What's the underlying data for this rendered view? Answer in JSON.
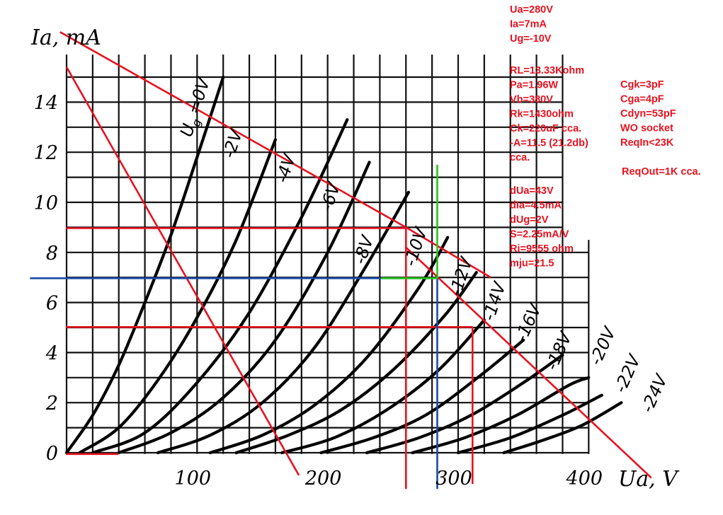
{
  "chart_data": {
    "type": "line",
    "xlabel": "Ua, V",
    "ylabel": "Ia, mA",
    "xlim": [
      0,
      400
    ],
    "ylim": [
      0,
      15
    ],
    "x_ticks": [
      100,
      200,
      300,
      400
    ],
    "x_tick_labels": [
      "100",
      "200",
      "300",
      "400"
    ],
    "y_ticks": [
      0,
      2,
      4,
      6,
      8,
      10,
      12,
      14
    ],
    "y_tick_labels": [
      "0",
      "2",
      "4",
      "6",
      "8",
      "10",
      "12",
      "14"
    ],
    "grid": true,
    "series": [
      {
        "name": "Ug=0V",
        "label": "=0V",
        "ug": 0,
        "x": [
          0,
          20,
          40,
          60,
          80,
          100,
          120
        ],
        "y": [
          0,
          1.5,
          3.5,
          6.0,
          8.7,
          11.8,
          15.0
        ]
      },
      {
        "name": "-2V",
        "label": "-2V",
        "ug": -2,
        "x": [
          10,
          40,
          70,
          100,
          130,
          160
        ],
        "y": [
          0,
          1.0,
          2.9,
          5.4,
          8.5,
          12.5
        ]
      },
      {
        "name": "-4V",
        "label": "-4V",
        "ug": -4,
        "x": [
          20,
          60,
          100,
          140,
          180,
          215
        ],
        "y": [
          0,
          0.8,
          2.8,
          5.6,
          9.4,
          13.3
        ]
      },
      {
        "name": "-6V",
        "label": "-6V",
        "ug": -6,
        "x": [
          40,
          80,
          120,
          160,
          200,
          232
        ],
        "y": [
          0,
          0.8,
          2.2,
          4.5,
          8.0,
          11.6
        ]
      },
      {
        "name": "-8V",
        "label": "-8V",
        "ug": -8,
        "x": [
          70,
          110,
          150,
          190,
          230,
          262
        ],
        "y": [
          0,
          0.7,
          2.0,
          4.2,
          7.5,
          10.4
        ]
      },
      {
        "name": "-10V",
        "label": "-10V",
        "ug": -10,
        "x": [
          110,
          150,
          190,
          230,
          270,
          292
        ],
        "y": [
          0,
          0.7,
          1.9,
          3.8,
          6.6,
          8.6
        ]
      },
      {
        "name": "-12V",
        "label": "-12V",
        "ug": -12,
        "x": [
          130,
          170,
          210,
          250,
          290,
          314
        ],
        "y": [
          0,
          0.7,
          1.7,
          3.3,
          5.5,
          7.2
        ]
      },
      {
        "name": "-14V",
        "label": "-14V",
        "ug": -14,
        "x": [
          165,
          205,
          245,
          285,
          320
        ],
        "y": [
          0,
          0.6,
          1.7,
          3.3,
          5.3
        ]
      },
      {
        "name": "-16V",
        "label": "-16V",
        "ug": -16,
        "x": [
          195,
          235,
          275,
          315,
          350
        ],
        "y": [
          0,
          0.6,
          1.5,
          3.0,
          4.5
        ]
      },
      {
        "name": "-18V",
        "label": "-18V",
        "ug": -18,
        "x": [
          230,
          270,
          310,
          350,
          380
        ],
        "y": [
          0,
          0.6,
          1.5,
          2.8,
          3.9
        ]
      },
      {
        "name": "-20V",
        "label": "-20V",
        "ug": -20,
        "x": [
          265,
          305,
          345,
          385,
          400
        ],
        "y": [
          0,
          0.6,
          1.5,
          2.7,
          3.0
        ]
      },
      {
        "name": "-22V",
        "label": "-22V",
        "ug": -22,
        "x": [
          300,
          340,
          380,
          410
        ],
        "y": [
          0,
          0.6,
          1.5,
          2.3
        ]
      },
      {
        "name": "-24V",
        "label": "-24V",
        "ug": -24,
        "x": [
          335,
          365,
          395,
          425
        ],
        "y": [
          0,
          0.5,
          1.1,
          2.0
        ]
      }
    ],
    "overlay_lines": [
      {
        "color": "#e8121f",
        "x": [
          -5,
          260,
          325
        ],
        "y": [
          16.8,
          9.0,
          7.0
        ]
      },
      {
        "color": "#e8121f",
        "x": [
          0,
          178
        ],
        "y": [
          15.4,
          -0.9
        ]
      },
      {
        "color": "#e8121f",
        "x": [
          260,
          448
        ],
        "y": [
          8.2,
          -1.0
        ]
      },
      {
        "color": "#e8121f",
        "x": [
          -0.5,
          260
        ],
        "y": [
          8.97,
          8.97
        ]
      },
      {
        "color": "#e8121f",
        "x": [
          -0.5,
          311
        ],
        "y": [
          5.02,
          5.02
        ]
      },
      {
        "color": "#e8121f",
        "x": [
          260,
          260
        ],
        "y": [
          8.97,
          -1.45
        ]
      },
      {
        "color": "#e8121f",
        "x": [
          311,
          311
        ],
        "y": [
          5.02,
          -1.25
        ]
      },
      {
        "color": "#e8121f",
        "x": [
          -0.5,
          39.5
        ],
        "y": [
          -0.05,
          -0.05
        ]
      },
      {
        "color": "#1a4aa8",
        "x": [
          -28,
          284
        ],
        "y": [
          6.97,
          6.97
        ]
      },
      {
        "color": "#1a4aa8",
        "x": [
          284,
          284
        ],
        "y": [
          6.97,
          -1.45
        ]
      },
      {
        "color": "#22c51a",
        "x": [
          241,
          284
        ],
        "y": [
          6.97,
          6.97
        ]
      },
      {
        "color": "#22c51a",
        "x": [
          284,
          284
        ],
        "y": [
          6.97,
          11.5
        ]
      }
    ]
  },
  "annotations": {
    "op_point": [
      "Ua=280V",
      "Ia=7mA",
      "Ug=-10V"
    ],
    "stage": [
      "RL=13.33Kohm",
      "Pa=1.96W",
      "Vb=380V",
      "Rk=1430ohm",
      "Ck=220uF cca.",
      "-A=11.5 (21.2db)",
      "cca."
    ],
    "params": [
      "dUa=43V",
      "dIa=4.5mA",
      "dUg=2V",
      "S=2.25mA/V",
      "Ri=9555 ohm",
      "mju=21.5"
    ],
    "caps": [
      "Cgk=3pF",
      "Cga=4pF",
      "Cdyn=53pF",
      "WO socket",
      "ReqIn<23K"
    ],
    "req_out": "ReqOut=1K cca."
  },
  "colors": {
    "annotation": "#e8121f",
    "load_line": "#e8121f",
    "cursor": "#1a4aa8",
    "delta": "#22c51a",
    "curves": "#000000"
  }
}
